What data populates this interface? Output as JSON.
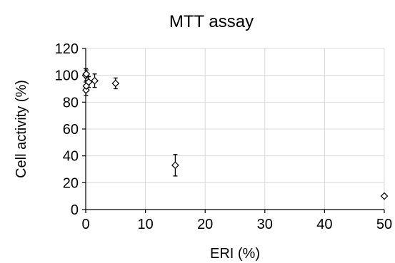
{
  "chart_data": {
    "type": "scatter",
    "title": "MTT assay",
    "xlabel": "ERI (%)",
    "ylabel": "Cell activity (%)",
    "xlim": [
      0,
      50
    ],
    "ylim": [
      0,
      120
    ],
    "x_ticks": [
      0,
      10,
      20,
      30,
      40,
      50
    ],
    "y_ticks": [
      0,
      20,
      40,
      60,
      80,
      100,
      120
    ],
    "x_tick_labels": [
      "0",
      "10",
      "20",
      "30",
      "40",
      "50"
    ],
    "y_tick_labels": [
      "0",
      "20",
      "40",
      "60",
      "80",
      "100",
      "120"
    ],
    "grid": true,
    "legend": "none",
    "marker": "open-diamond",
    "points": [
      {
        "x": 0.0,
        "y": 100,
        "err": 5
      },
      {
        "x": 0.1,
        "y": 101,
        "err": 3
      },
      {
        "x": 0.05,
        "y": 89,
        "err": 4
      },
      {
        "x": 0.1,
        "y": 92,
        "err": 4
      },
      {
        "x": 0.5,
        "y": 95,
        "err": 4
      },
      {
        "x": 1.5,
        "y": 96,
        "err": 5
      },
      {
        "x": 5,
        "y": 94,
        "err": 4
      },
      {
        "x": 15,
        "y": 33,
        "err": 8
      },
      {
        "x": 50,
        "y": 10,
        "err": 1
      }
    ]
  }
}
